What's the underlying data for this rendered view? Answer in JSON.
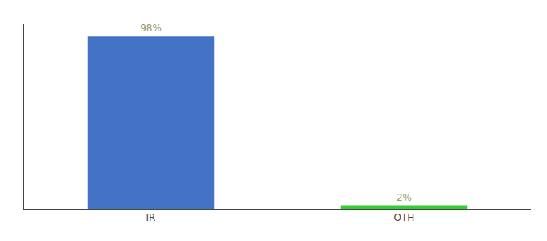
{
  "chart_data": {
    "type": "bar",
    "categories": [
      "IR",
      "OTH"
    ],
    "values": [
      98,
      2
    ],
    "value_labels": [
      "98%",
      "2%"
    ],
    "data_labels": true,
    "colors": [
      "#4472C4",
      "#33CC33"
    ],
    "ylim": [
      0,
      105
    ],
    "yticks": [],
    "tick_labels": "x",
    "grid": false
  }
}
